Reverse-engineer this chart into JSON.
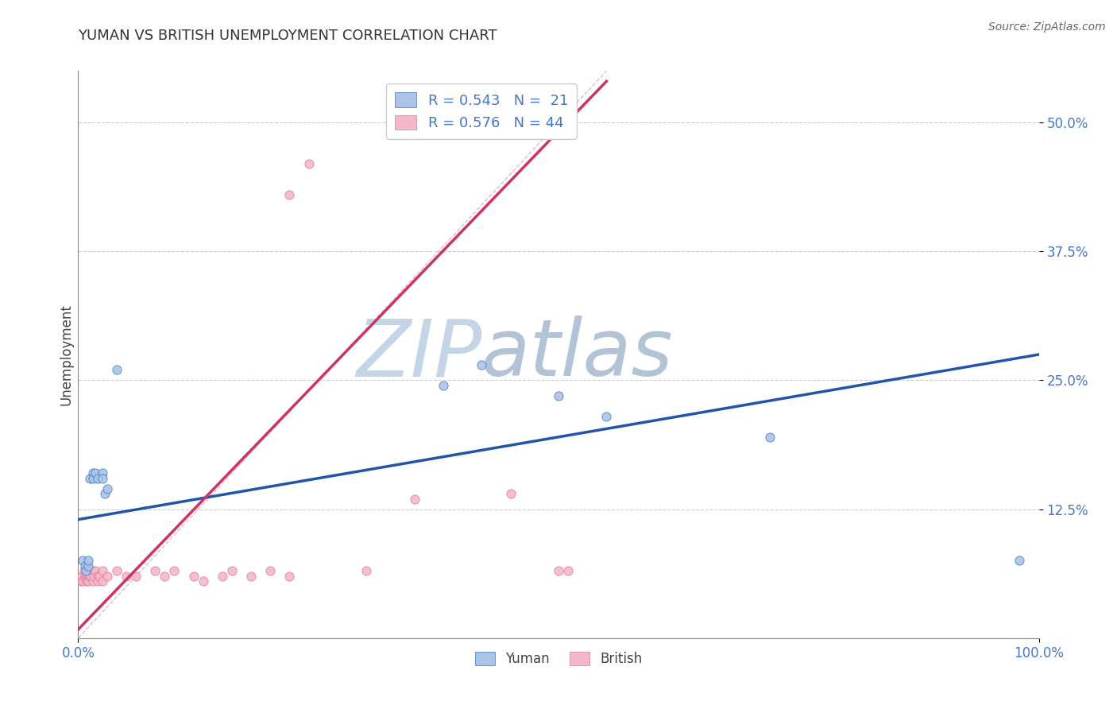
{
  "title": "YUMAN VS BRITISH UNEMPLOYMENT CORRELATION CHART",
  "source": "Source: ZipAtlas.com",
  "ylabel_label": "Unemployment",
  "x_min": 0.0,
  "x_max": 1.0,
  "y_min": 0.0,
  "y_max": 0.55,
  "legend_blue_r": "R = 0.543",
  "legend_blue_n": "N =  21",
  "legend_pink_r": "R = 0.576",
  "legend_pink_n": "N = 44",
  "yuman_color": "#aac4e8",
  "british_color": "#f4b8c8",
  "trendline_blue_color": "#2255aa",
  "trendline_pink_color": "#cc3366",
  "diagonal_color": "#e8b8c8",
  "watermark_zip_color": "#c8d8ec",
  "watermark_atlas_color": "#a8b8cc",
  "yuman_points": [
    [
      0.005,
      0.075
    ],
    [
      0.007,
      0.07
    ],
    [
      0.008,
      0.065
    ],
    [
      0.01,
      0.07
    ],
    [
      0.01,
      0.075
    ],
    [
      0.012,
      0.155
    ],
    [
      0.015,
      0.16
    ],
    [
      0.015,
      0.155
    ],
    [
      0.018,
      0.16
    ],
    [
      0.02,
      0.155
    ],
    [
      0.025,
      0.16
    ],
    [
      0.025,
      0.155
    ],
    [
      0.028,
      0.14
    ],
    [
      0.03,
      0.145
    ],
    [
      0.04,
      0.26
    ],
    [
      0.38,
      0.245
    ],
    [
      0.42,
      0.265
    ],
    [
      0.5,
      0.235
    ],
    [
      0.55,
      0.215
    ],
    [
      0.72,
      0.195
    ],
    [
      0.98,
      0.075
    ]
  ],
  "british_points": [
    [
      0.003,
      0.055
    ],
    [
      0.004,
      0.06
    ],
    [
      0.005,
      0.055
    ],
    [
      0.006,
      0.065
    ],
    [
      0.007,
      0.06
    ],
    [
      0.008,
      0.058
    ],
    [
      0.008,
      0.063
    ],
    [
      0.009,
      0.055
    ],
    [
      0.01,
      0.06
    ],
    [
      0.01,
      0.065
    ],
    [
      0.01,
      0.055
    ],
    [
      0.012,
      0.06
    ],
    [
      0.012,
      0.065
    ],
    [
      0.013,
      0.06
    ],
    [
      0.015,
      0.065
    ],
    [
      0.015,
      0.055
    ],
    [
      0.016,
      0.06
    ],
    [
      0.018,
      0.065
    ],
    [
      0.02,
      0.06
    ],
    [
      0.02,
      0.055
    ],
    [
      0.022,
      0.06
    ],
    [
      0.025,
      0.065
    ],
    [
      0.025,
      0.055
    ],
    [
      0.03,
      0.06
    ],
    [
      0.04,
      0.065
    ],
    [
      0.05,
      0.06
    ],
    [
      0.06,
      0.06
    ],
    [
      0.08,
      0.065
    ],
    [
      0.09,
      0.06
    ],
    [
      0.1,
      0.065
    ],
    [
      0.12,
      0.06
    ],
    [
      0.13,
      0.055
    ],
    [
      0.15,
      0.06
    ],
    [
      0.16,
      0.065
    ],
    [
      0.18,
      0.06
    ],
    [
      0.2,
      0.065
    ],
    [
      0.22,
      0.06
    ],
    [
      0.3,
      0.065
    ],
    [
      0.35,
      0.135
    ],
    [
      0.45,
      0.14
    ],
    [
      0.5,
      0.065
    ],
    [
      0.51,
      0.065
    ],
    [
      0.22,
      0.43
    ],
    [
      0.24,
      0.46
    ]
  ],
  "blue_trendline": [
    [
      0.0,
      0.115
    ],
    [
      1.0,
      0.275
    ]
  ],
  "pink_trendline": [
    [
      -0.05,
      -0.04
    ],
    [
      0.55,
      0.54
    ]
  ],
  "diagonal_line": [
    [
      0.0,
      0.0
    ],
    [
      0.55,
      0.55
    ]
  ]
}
